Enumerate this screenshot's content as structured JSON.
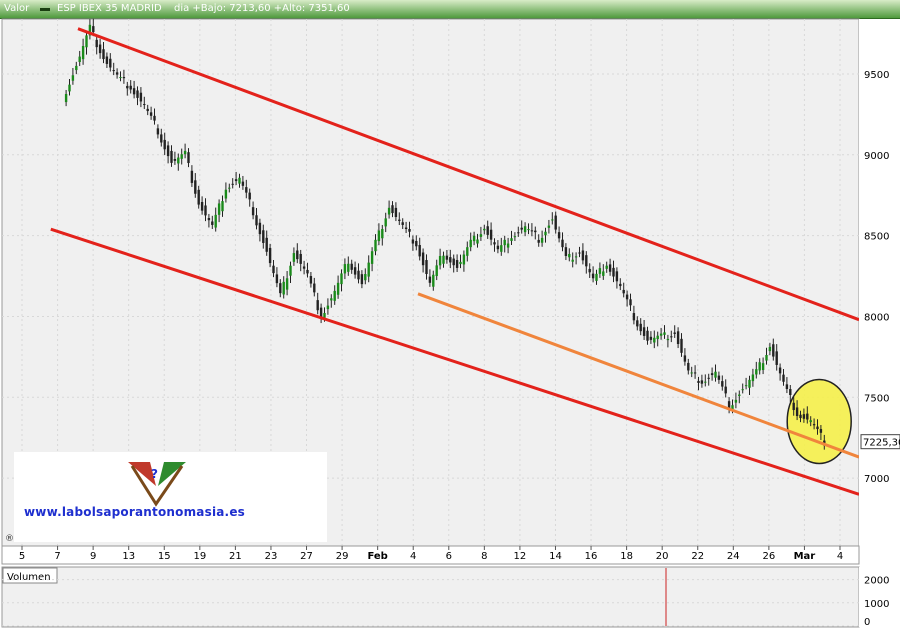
{
  "header": {
    "label": "Valor",
    "instrument": "ESP IBEX 35 MADRID",
    "stats": "dia +Bajo: 7213,60 +Alto: 7351,60"
  },
  "watermark": {
    "url": "www.labolsaporantonomasia.es"
  },
  "chart_data": {
    "type": "candlestick",
    "title": "ESP IBEX 35 MADRID",
    "price_axis": {
      "ticks": [
        "9500",
        "9000",
        "8500",
        "8000",
        "7500",
        "7000"
      ],
      "ylim": [
        6580,
        9840
      ],
      "last_price_label": "7225,30",
      "last_price": 7225.3
    },
    "x_axis": {
      "ticks": [
        "5",
        "7",
        "9",
        "13",
        "15",
        "19",
        "21",
        "23",
        "27",
        "29",
        "Feb",
        "4",
        "6",
        "8",
        "12",
        "14",
        "16",
        "18",
        "20",
        "22",
        "24",
        "26",
        "Mar",
        "4"
      ]
    },
    "price_series": [
      {
        "x": 5,
        "y": 9350
      },
      {
        "x": 6,
        "y": 9550
      },
      {
        "x": 7,
        "y": 9780
      },
      {
        "x": 8,
        "y": 9600
      },
      {
        "x": 9,
        "y": 9480
      },
      {
        "x": 10,
        "y": 9420
      },
      {
        "x": 11,
        "y": 9300
      },
      {
        "x": 12,
        "y": 9150
      },
      {
        "x": 13,
        "y": 8950
      },
      {
        "x": 14,
        "y": 9000
      },
      {
        "x": 15,
        "y": 8700
      },
      {
        "x": 16,
        "y": 8550
      },
      {
        "x": 17,
        "y": 8800
      },
      {
        "x": 18,
        "y": 8850
      },
      {
        "x": 19,
        "y": 8650
      },
      {
        "x": 20,
        "y": 8400
      },
      {
        "x": 21,
        "y": 8120
      },
      {
        "x": 22,
        "y": 8400
      },
      {
        "x": 23,
        "y": 8250
      },
      {
        "x": 24,
        "y": 8000
      },
      {
        "x": 25,
        "y": 8150
      },
      {
        "x": 26,
        "y": 8350
      },
      {
        "x": 27,
        "y": 8200
      },
      {
        "x": 28,
        "y": 8450
      },
      {
        "x": 29,
        "y": 8680
      },
      {
        "x": 30,
        "y": 8550
      },
      {
        "x": 31,
        "y": 8450
      },
      {
        "x": 32,
        "y": 8200
      },
      {
        "x": 33,
        "y": 8400
      },
      {
        "x": 34,
        "y": 8300
      },
      {
        "x": 35,
        "y": 8450
      },
      {
        "x": 36,
        "y": 8550
      },
      {
        "x": 37,
        "y": 8400
      },
      {
        "x": 38,
        "y": 8500
      },
      {
        "x": 39,
        "y": 8550
      },
      {
        "x": 40,
        "y": 8480
      },
      {
        "x": 41,
        "y": 8600
      },
      {
        "x": 42,
        "y": 8350
      },
      {
        "x": 43,
        "y": 8400
      },
      {
        "x": 44,
        "y": 8220
      },
      {
        "x": 45,
        "y": 8330
      },
      {
        "x": 46,
        "y": 8180
      },
      {
        "x": 47,
        "y": 8000
      },
      {
        "x": 48,
        "y": 7850
      },
      {
        "x": 49,
        "y": 7870
      },
      {
        "x": 50,
        "y": 7900
      },
      {
        "x": 51,
        "y": 7650
      },
      {
        "x": 52,
        "y": 7600
      },
      {
        "x": 53,
        "y": 7650
      },
      {
        "x": 54,
        "y": 7450
      },
      {
        "x": 55,
        "y": 7550
      },
      {
        "x": 56,
        "y": 7650
      },
      {
        "x": 57,
        "y": 7820
      },
      {
        "x": 58,
        "y": 7580
      },
      {
        "x": 59,
        "y": 7400
      },
      {
        "x": 60,
        "y": 7350
      },
      {
        "x": 61,
        "y": 7225
      }
    ],
    "volume_axis": {
      "ticks": [
        "2000",
        "1000",
        "0"
      ],
      "ylim": [
        0,
        2500
      ]
    },
    "volume_panel_label": "Volumen",
    "trendlines": [
      {
        "name": "upper-channel",
        "color": "#e3221b",
        "from": {
          "x": 6,
          "y": 9780
        },
        "to": {
          "x": 74,
          "y": 7980
        }
      },
      {
        "name": "lower-channel",
        "color": "#e3221b",
        "from": {
          "x": 4,
          "y": 8540
        },
        "to": {
          "x": 74,
          "y": 6900
        }
      },
      {
        "name": "support-line",
        "color": "#f0853c",
        "from": {
          "x": 31,
          "y": 8140
        },
        "to": {
          "x": 74,
          "y": 7130
        }
      }
    ],
    "highlight": {
      "color": "#f5f04a",
      "center": {
        "x": 60.5,
        "y": 7350
      }
    },
    "grid": true,
    "colors": {
      "up_candle": "#1a8a1a",
      "down_candle": "#222222",
      "background": "#f0f0f0"
    }
  }
}
